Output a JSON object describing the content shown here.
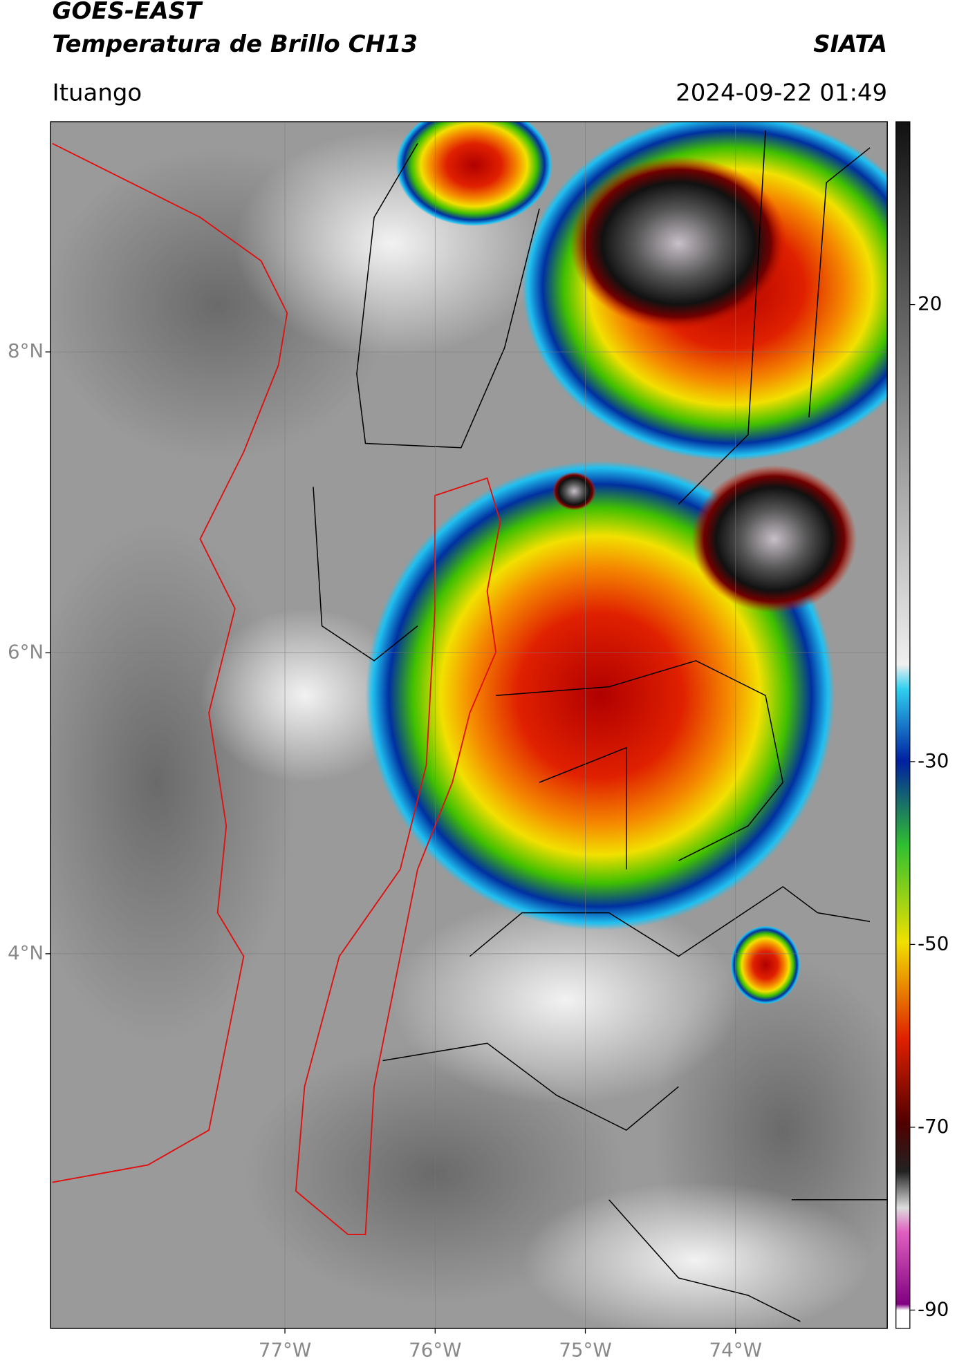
{
  "header": {
    "title": "GOES-EAST",
    "subtitle": "Temperatura de Brillo CH13",
    "source": "SIATA",
    "location": "Ituango",
    "datetime": "2024-09-22 01:49"
  },
  "map": {
    "latlim": [
      1.51,
      9.53
    ],
    "lonlim": [
      -78.56,
      -72.99
    ],
    "latticks": [
      {
        "value": 8,
        "label": "8°N"
      },
      {
        "value": 6,
        "label": "6°N"
      },
      {
        "value": 4,
        "label": "4°N"
      }
    ],
    "lonticks": [
      {
        "value": -77,
        "label": "77°W"
      },
      {
        "value": -76,
        "label": "76°W"
      },
      {
        "value": -75,
        "label": "75°W"
      },
      {
        "value": -74,
        "label": "74°W"
      }
    ]
  },
  "colorbar": {
    "lim": [
      -92,
      40
    ],
    "ticks": [
      20,
      -30,
      -50,
      -70,
      -90
    ]
  }
}
